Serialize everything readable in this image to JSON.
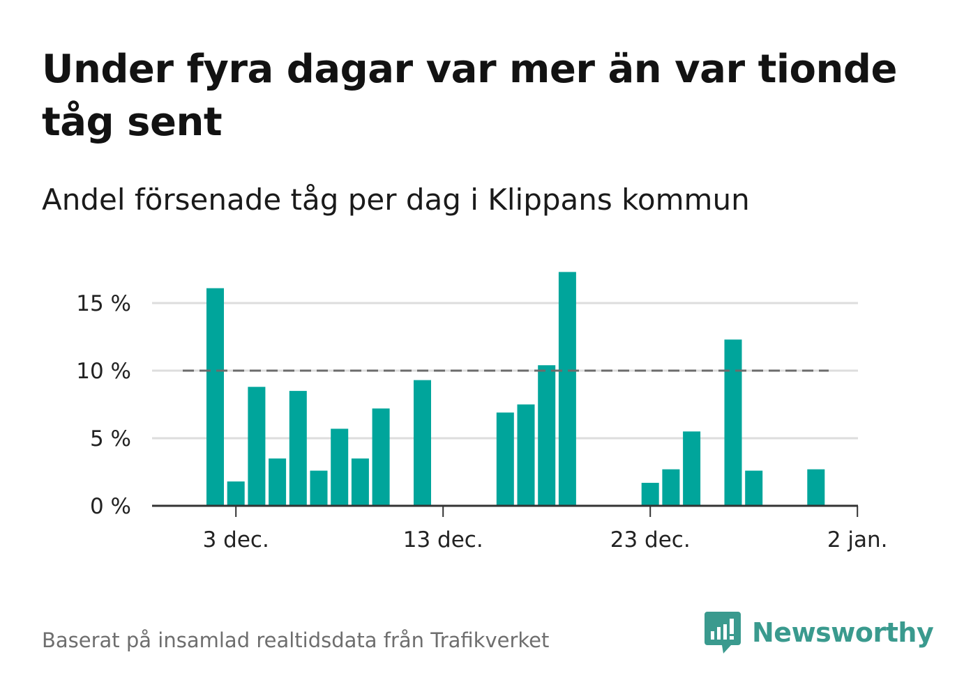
{
  "title": "Under fyra dagar var mer än var tionde tåg sent",
  "subtitle": "Andel försenade tåg per dag i Klippans kommun",
  "footer": "Baserat på insamlad realtidsdata från Trafikverket",
  "brand": {
    "name": "Newsworthy",
    "color": "#3a9a8e",
    "icon": "newsworthy-logo-icon"
  },
  "colors": {
    "bar": "#00a59b",
    "reference_line": "#6b6b6b",
    "grid": "#dddddd",
    "axis": "#333333"
  },
  "chart_data": {
    "type": "bar",
    "x_start": "2023-12-02",
    "x": [
      "2023-12-02",
      "2023-12-03",
      "2023-12-04",
      "2023-12-05",
      "2023-12-06",
      "2023-12-07",
      "2023-12-08",
      "2023-12-09",
      "2023-12-10",
      "2023-12-11",
      "2023-12-12",
      "2023-12-13",
      "2023-12-14",
      "2023-12-15",
      "2023-12-16",
      "2023-12-17",
      "2023-12-18",
      "2023-12-19",
      "2023-12-20",
      "2023-12-21",
      "2023-12-22",
      "2023-12-23",
      "2023-12-24",
      "2023-12-25",
      "2023-12-26",
      "2023-12-27",
      "2023-12-28",
      "2023-12-29",
      "2023-12-30",
      "2023-12-31",
      "2024-01-01"
    ],
    "values": [
      16.1,
      1.8,
      8.8,
      3.5,
      8.5,
      2.6,
      5.7,
      3.5,
      7.2,
      0,
      9.3,
      0,
      0,
      0,
      6.9,
      7.5,
      10.4,
      17.3,
      0,
      0,
      0,
      1.7,
      2.7,
      5.5,
      0,
      12.3,
      2.6,
      0,
      0,
      2.7,
      0
    ],
    "ylim": [
      0,
      18
    ],
    "yticks": [
      0,
      5,
      10,
      15
    ],
    "ytick_labels": [
      "0 %",
      "5 %",
      "10 %",
      "15 %"
    ],
    "xtick_dates": [
      "2023-12-03",
      "2023-12-13",
      "2023-12-23",
      "2024-01-02"
    ],
    "xtick_labels": [
      "3 dec.",
      "13 dec.",
      "23 dec.",
      "2 jan."
    ],
    "reference_line": {
      "value": 10,
      "style": "dashed"
    },
    "grid": true,
    "xlabel": "",
    "ylabel": ""
  }
}
